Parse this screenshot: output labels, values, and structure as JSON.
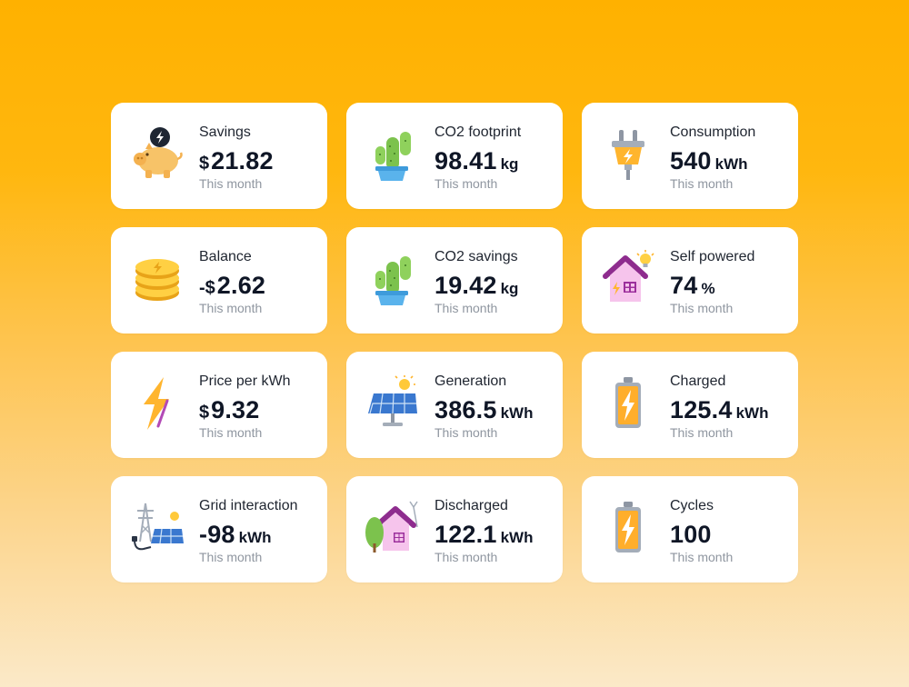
{
  "cards": [
    {
      "label": "Savings",
      "prefix": "$",
      "value": "21.82",
      "unit": "",
      "sub": "This month",
      "icon": "piggy-bank-icon"
    },
    {
      "label": "CO2 footprint",
      "prefix": "",
      "value": "98.41",
      "unit": "kg",
      "sub": "This month",
      "icon": "cactus-icon"
    },
    {
      "label": "Consumption",
      "prefix": "",
      "value": "540",
      "unit": "kWh",
      "sub": "This month",
      "icon": "plug-icon"
    },
    {
      "label": "Balance",
      "prefix": "-$",
      "value": "2.62",
      "unit": "",
      "sub": "This month",
      "icon": "coins-icon"
    },
    {
      "label": "CO2 savings",
      "prefix": "",
      "value": "19.42",
      "unit": "kg",
      "sub": "This month",
      "icon": "cactus-icon"
    },
    {
      "label": "Self powered",
      "prefix": "",
      "value": "74",
      "unit": "%",
      "sub": "This month",
      "icon": "house-bulb-icon"
    },
    {
      "label": "Price per kWh",
      "prefix": "$",
      "value": "9.32",
      "unit": "",
      "sub": "This month",
      "icon": "lightning-bolt-icon"
    },
    {
      "label": "Generation",
      "prefix": "",
      "value": "386.5",
      "unit": "kWh",
      "sub": "This month",
      "icon": "solar-panel-icon"
    },
    {
      "label": "Charged",
      "prefix": "",
      "value": "125.4",
      "unit": "kWh",
      "sub": "This month",
      "icon": "battery-icon"
    },
    {
      "label": "Grid interaction",
      "prefix": "",
      "value": "-98",
      "unit": "kWh",
      "sub": "This month",
      "icon": "grid-tower-icon"
    },
    {
      "label": "Discharged",
      "prefix": "",
      "value": "122.1",
      "unit": "kWh",
      "sub": "This month",
      "icon": "house-tree-icon"
    },
    {
      "label": "Cycles",
      "prefix": "",
      "value": "100",
      "unit": "",
      "sub": "This month",
      "icon": "battery-icon"
    }
  ],
  "colors": {
    "background_top": "#FFB100",
    "background_bottom": "#FBE9C8",
    "card": "#FFFFFF",
    "value_text": "#0F1626",
    "sub_text": "#8F96A0"
  }
}
